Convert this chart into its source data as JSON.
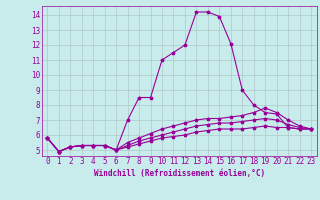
{
  "xlabel": "Windchill (Refroidissement éolien,°C)",
  "background_color": "#c8ecec",
  "line_color": "#990099",
  "grid_color": "#b0c8c8",
  "x_ticks": [
    0,
    1,
    2,
    3,
    4,
    5,
    6,
    7,
    8,
    9,
    10,
    11,
    12,
    13,
    14,
    15,
    16,
    17,
    18,
    19,
    20,
    21,
    22,
    23
  ],
  "y_ticks": [
    5,
    6,
    7,
    8,
    9,
    10,
    11,
    12,
    13,
    14
  ],
  "ylim": [
    4.6,
    14.6
  ],
  "xlim": [
    -0.5,
    23.5
  ],
  "lines": [
    [
      5.8,
      4.9,
      5.2,
      5.3,
      5.3,
      5.3,
      5.0,
      7.0,
      8.5,
      8.5,
      11.0,
      11.5,
      12.0,
      14.2,
      14.2,
      13.9,
      12.1,
      9.0,
      8.0,
      7.5,
      7.4,
      6.5,
      6.4,
      6.4
    ],
    [
      5.8,
      4.9,
      5.2,
      5.3,
      5.3,
      5.3,
      5.0,
      5.5,
      5.8,
      6.1,
      6.4,
      6.6,
      6.8,
      7.0,
      7.1,
      7.1,
      7.2,
      7.3,
      7.5,
      7.8,
      7.5,
      7.0,
      6.6,
      6.4
    ],
    [
      5.8,
      4.9,
      5.2,
      5.3,
      5.3,
      5.3,
      5.0,
      5.3,
      5.6,
      5.8,
      6.0,
      6.2,
      6.4,
      6.6,
      6.7,
      6.8,
      6.8,
      6.9,
      7.0,
      7.1,
      7.0,
      6.7,
      6.5,
      6.4
    ],
    [
      5.8,
      4.9,
      5.2,
      5.3,
      5.3,
      5.3,
      5.0,
      5.2,
      5.4,
      5.6,
      5.8,
      5.9,
      6.0,
      6.2,
      6.3,
      6.4,
      6.4,
      6.4,
      6.5,
      6.6,
      6.5,
      6.5,
      6.4,
      6.4
    ]
  ],
  "tick_fontsize": 5.5,
  "xlabel_fontsize": 5.5,
  "linewidth": 0.8,
  "markersize": 2.5
}
